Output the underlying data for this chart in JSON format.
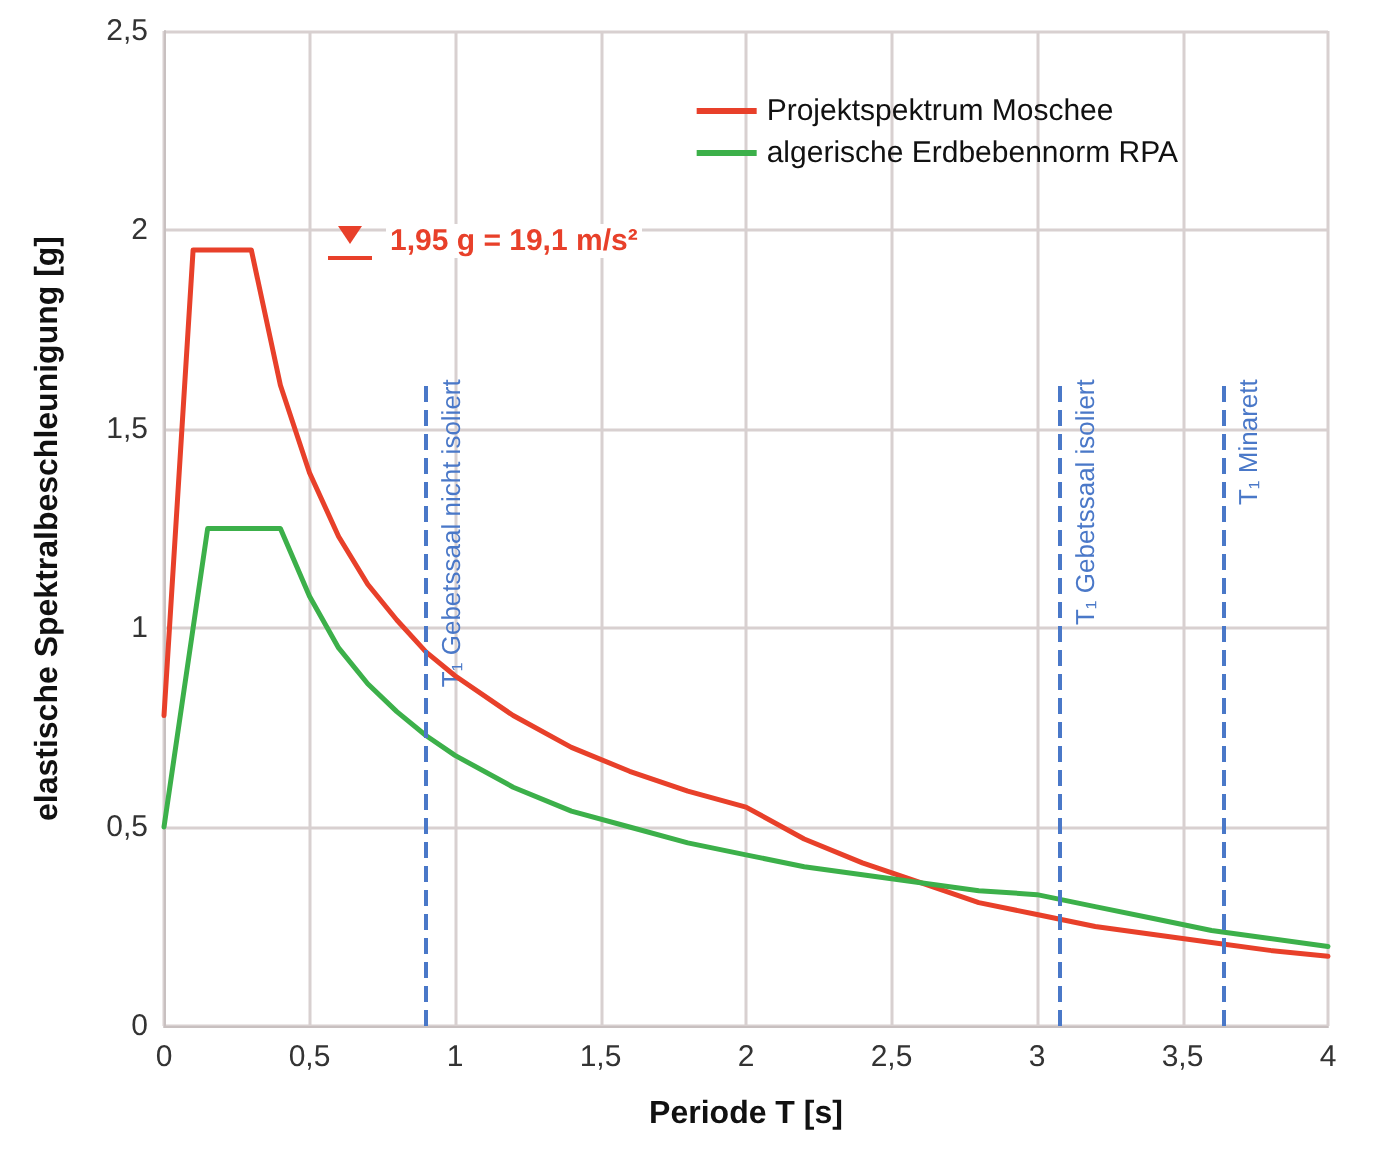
{
  "chart_data": {
    "type": "line",
    "xlabel": "Periode T [s]",
    "ylabel": "elastische Spektralbeschleunigung [g]",
    "series": [
      {
        "name": "Projektspektrum Moschee",
        "color": "#e8402a",
        "x": [
          0,
          0.1,
          0.3,
          0.4,
          0.5,
          0.6,
          0.7,
          0.8,
          0.9,
          1.0,
          1.2,
          1.4,
          1.6,
          1.8,
          2.0,
          2.2,
          2.4,
          2.6,
          2.8,
          3.0,
          3.2,
          3.4,
          3.6,
          3.8,
          4.0
        ],
        "values": [
          0.78,
          1.95,
          1.95,
          1.61,
          1.39,
          1.23,
          1.11,
          1.02,
          0.94,
          0.88,
          0.78,
          0.7,
          0.64,
          0.59,
          0.55,
          0.47,
          0.41,
          0.36,
          0.31,
          0.28,
          0.25,
          0.23,
          0.21,
          0.19,
          0.175
        ]
      },
      {
        "name": "algerische Erdbebennorm RPA",
        "color": "#3cb04a",
        "x": [
          0,
          0.15,
          0.4,
          0.5,
          0.6,
          0.7,
          0.8,
          0.9,
          1.0,
          1.2,
          1.4,
          1.6,
          1.8,
          2.0,
          2.2,
          2.4,
          2.6,
          2.8,
          3.0,
          3.2,
          3.4,
          3.6,
          3.8,
          4.0
        ],
        "values": [
          0.5,
          1.25,
          1.25,
          1.08,
          0.95,
          0.86,
          0.79,
          0.73,
          0.68,
          0.6,
          0.54,
          0.5,
          0.46,
          0.43,
          0.4,
          0.38,
          0.36,
          0.34,
          0.33,
          0.3,
          0.27,
          0.24,
          0.22,
          0.2
        ]
      }
    ],
    "xlim": [
      0,
      4
    ],
    "xticks": [
      0,
      {
        "value": 0.5,
        "label": "0,5"
      },
      1,
      {
        "value": 1.5,
        "label": "1,5"
      },
      2,
      {
        "value": 2.5,
        "label": "2,5"
      },
      3,
      {
        "value": 3.5,
        "label": "3,5"
      },
      4
    ],
    "ylim": [
      0,
      2.5
    ],
    "yticks": [
      0,
      {
        "value": 0.5,
        "label": "0,5"
      },
      1,
      {
        "value": 1.5,
        "label": "1,5"
      },
      2,
      {
        "value": 2.5,
        "label": "2,5"
      }
    ],
    "ref_lines": [
      {
        "axis": "x",
        "value": 0.9,
        "label": "T₁ Gebetssaal nicht isoliert",
        "color": "#4a78c8",
        "line_style": "dashed"
      },
      {
        "axis": "x",
        "value": 3.08,
        "label": "T₁ Gebetssaal isoliert",
        "color": "#4a78c8",
        "line_style": "dashed"
      },
      {
        "axis": "x",
        "value": 3.64,
        "label": "T₁ Minarett",
        "color": "#4a78c8",
        "line_style": "dashed"
      }
    ],
    "annotations": [
      "1,95 g = 19,1 m/s²"
    ],
    "grid": true,
    "legend": "top right",
    "marker": "none",
    "line_style": "solid"
  }
}
